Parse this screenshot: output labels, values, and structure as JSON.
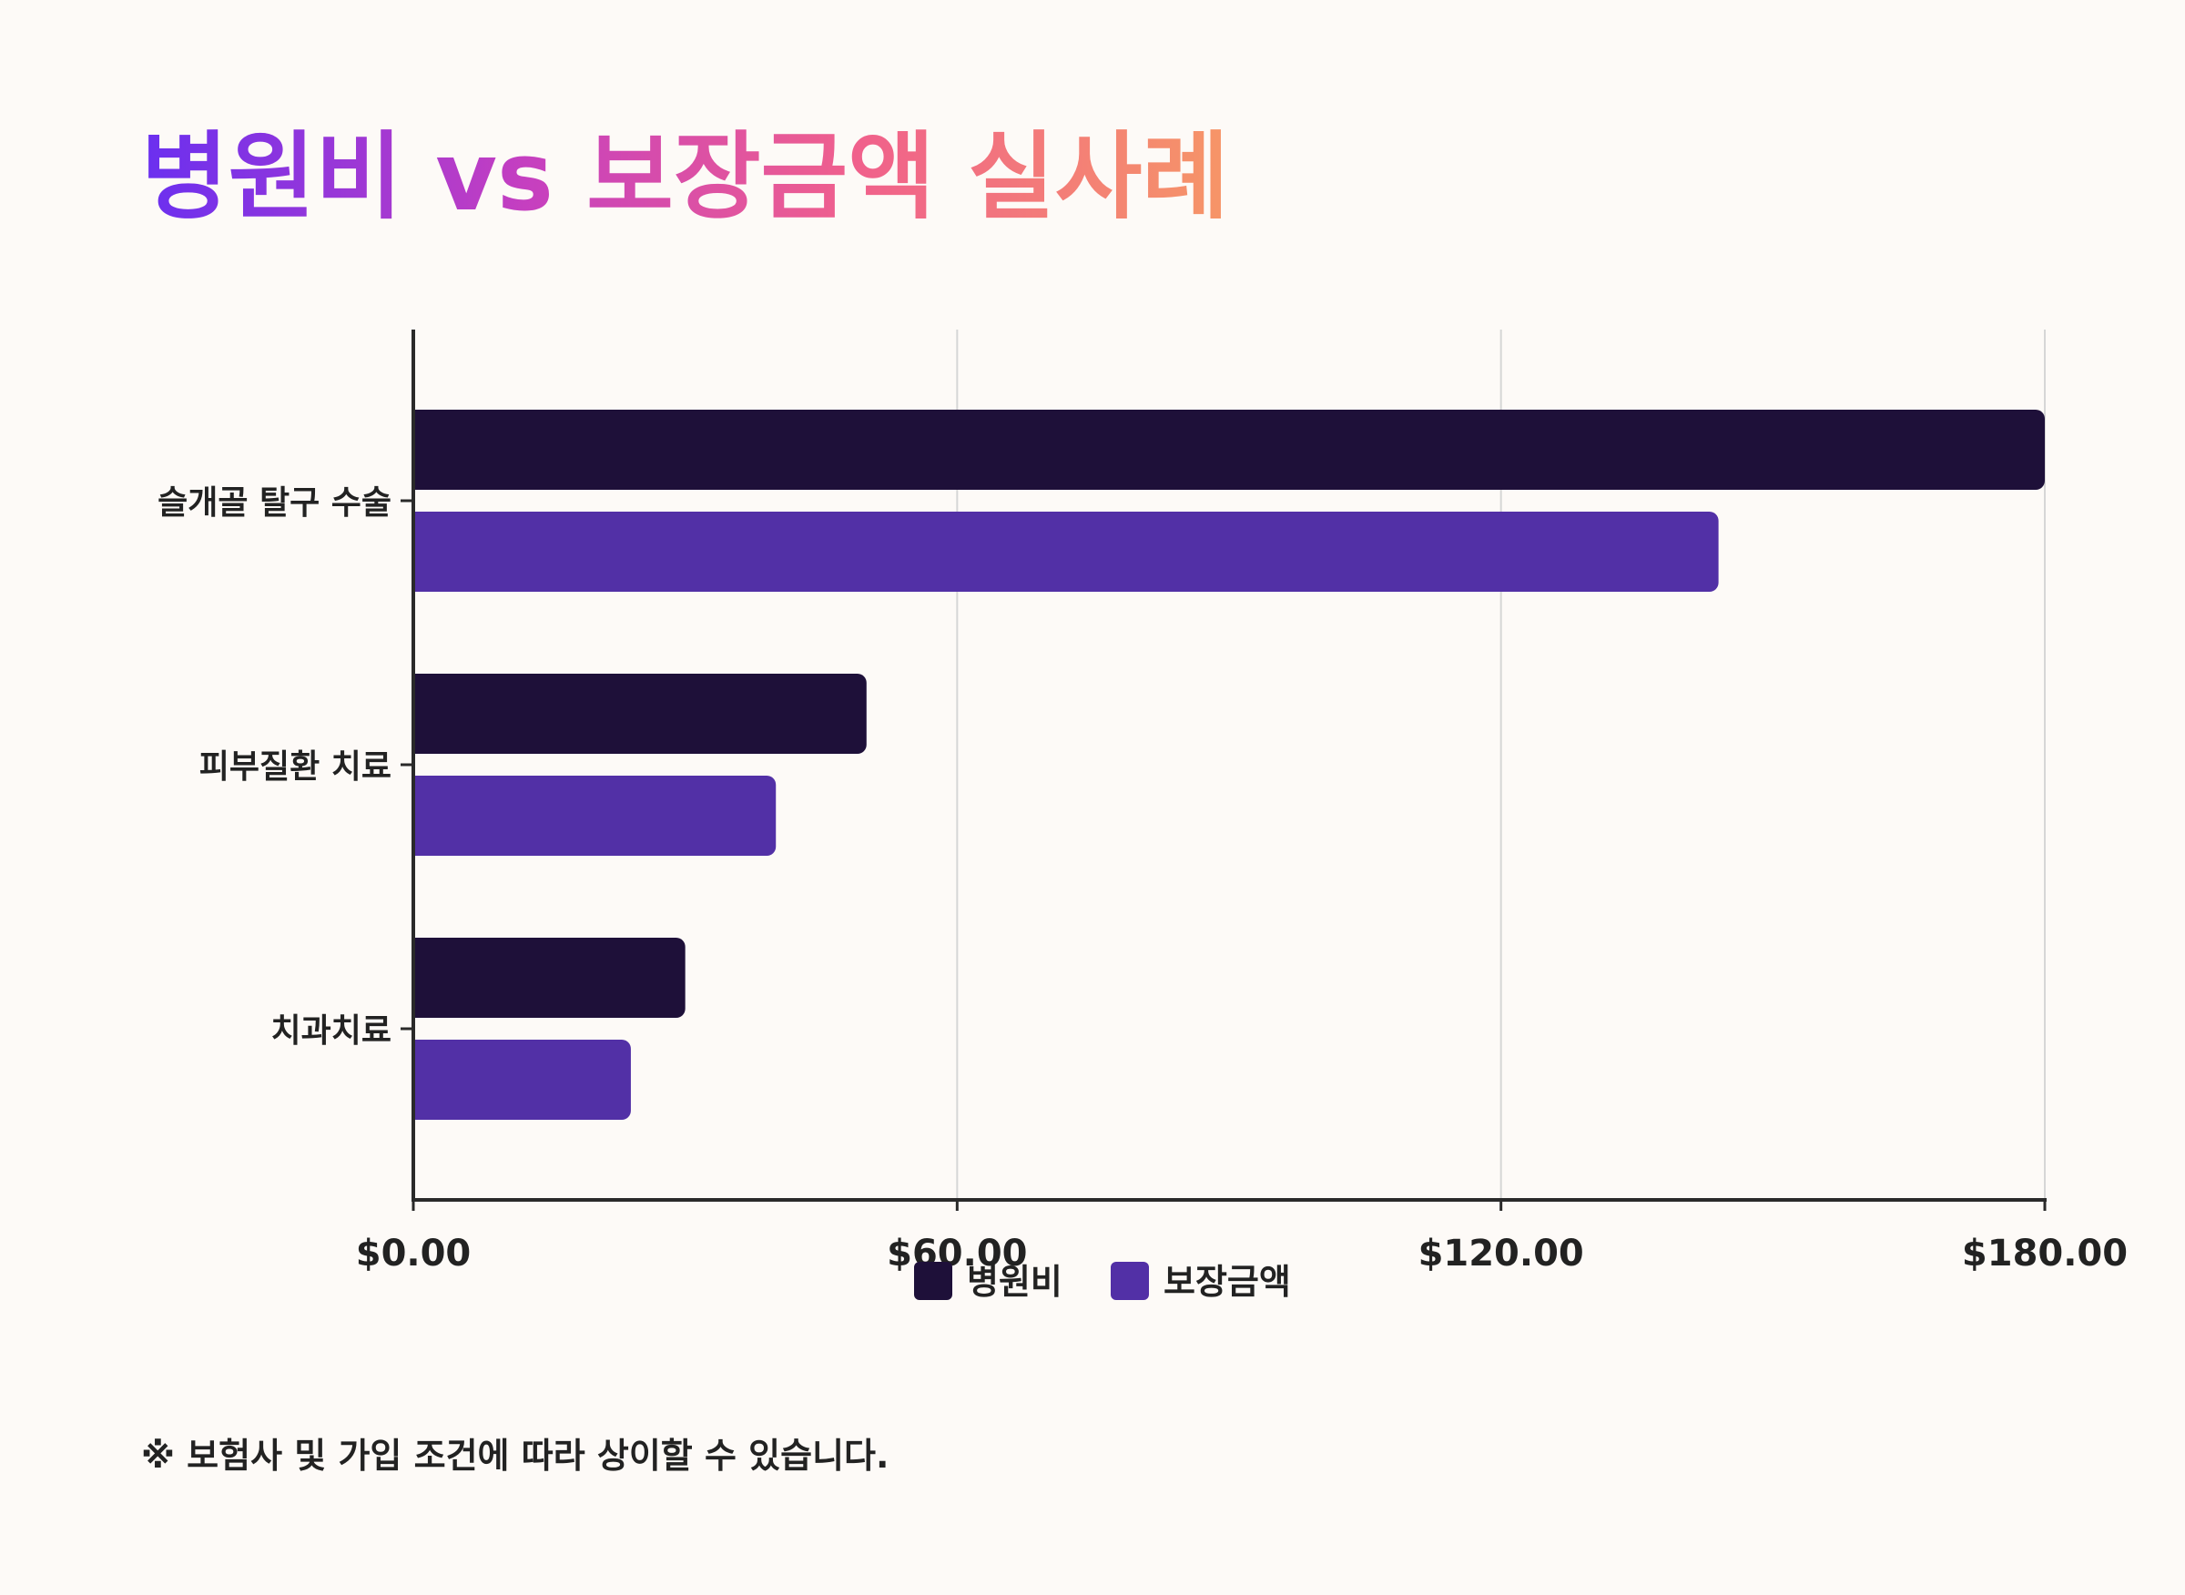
{
  "chart_data": {
    "type": "bar",
    "orientation": "horizontal",
    "title": "병원비 vs 보장금액 실사례",
    "categories": [
      "슬개골 탈구 수술",
      "피부질환 치료",
      "치과치료"
    ],
    "series": [
      {
        "name": "병원비",
        "values": [
          180,
          50,
          30
        ],
        "color": "#1e1039"
      },
      {
        "name": "보장금액",
        "values": [
          144,
          40,
          24
        ],
        "color": "#5230a6"
      }
    ],
    "xlim": [
      0,
      180
    ],
    "xticks": [
      0,
      60,
      120,
      180
    ],
    "xtick_labels": [
      "$0.00",
      "$60.00",
      "$120.00",
      "$180.00"
    ],
    "grid": "vertical",
    "legend_position": "bottom-center",
    "footnote": "※ 보험사 및 가입 조건에 따라 상이할 수 있습니다."
  },
  "colors": {
    "background": "#fdfaf7",
    "axis": "#2a2a2a",
    "grid": "#d6d6d6",
    "text": "#222222",
    "title_gradient": [
      "#6a2ff0",
      "#c53fc0",
      "#f0608c",
      "#f69766"
    ]
  }
}
